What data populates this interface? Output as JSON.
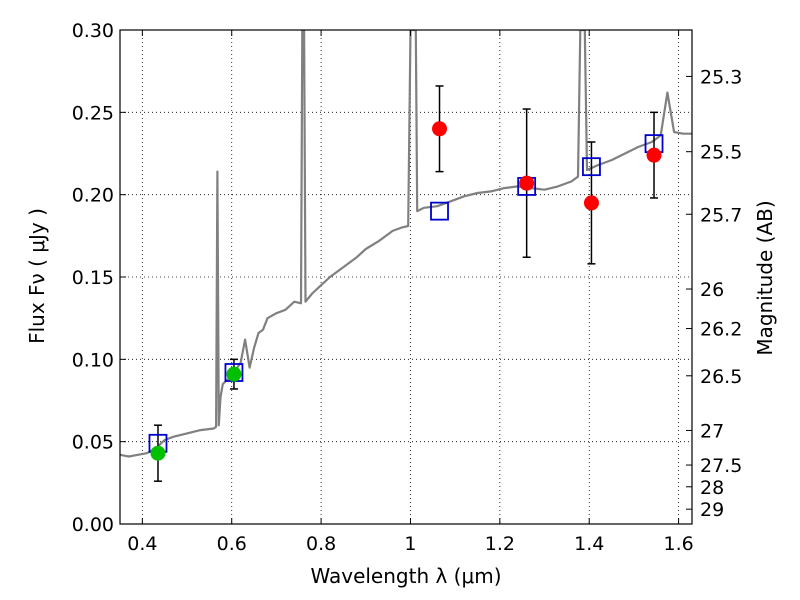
{
  "chart_data": {
    "type": "scatter",
    "xlabel": "Wavelength  λ (μm)",
    "ylabel": "Flux  Fν  ( μJy )",
    "y2label": "Magnitude (AB)",
    "xlim": [
      0.35,
      1.63
    ],
    "ylim": [
      0.0,
      0.3
    ],
    "grid": true,
    "x_ticks": [
      0.4,
      0.6,
      0.8,
      1.0,
      1.2,
      1.4,
      1.6
    ],
    "x_tick_labels": [
      "0.4",
      "0.6",
      "0.8",
      "1",
      "1.2",
      "1.4",
      "1.6"
    ],
    "y_ticks": [
      0.0,
      0.05,
      0.1,
      0.15,
      0.2,
      0.25,
      0.3
    ],
    "y_tick_labels": [
      "0.00",
      "0.05",
      "0.10",
      "0.15",
      "0.20",
      "0.25",
      "0.30"
    ],
    "y2_ticks": [
      {
        "label": "25.3",
        "flux": 0.2718
      },
      {
        "label": "25.5",
        "flux": 0.2261
      },
      {
        "label": "25.7",
        "flux": 0.1881
      },
      {
        "label": "26",
        "flux": 0.1427
      },
      {
        "label": "26.2",
        "flux": 0.1187
      },
      {
        "label": "26.5",
        "flux": 0.09
      },
      {
        "label": "27",
        "flux": 0.0568
      },
      {
        "label": "27.5",
        "flux": 0.0358
      },
      {
        "label": "28",
        "flux": 0.0226
      },
      {
        "label": "29",
        "flux": 0.009
      }
    ],
    "colors": {
      "model": "#808080",
      "observed_green": "#00c000",
      "observed_red": "#ff0000",
      "model_box": "#0000cc",
      "errorbar": "#000000"
    },
    "model_spectrum": [
      [
        0.35,
        0.042
      ],
      [
        0.37,
        0.041
      ],
      [
        0.39,
        0.042
      ],
      [
        0.41,
        0.043
      ],
      [
        0.43,
        0.046
      ],
      [
        0.45,
        0.051
      ],
      [
        0.47,
        0.053
      ],
      [
        0.5,
        0.055
      ],
      [
        0.53,
        0.057
      ],
      [
        0.56,
        0.058
      ],
      [
        0.565,
        0.059
      ],
      [
        0.568,
        0.214
      ],
      [
        0.571,
        0.06
      ],
      [
        0.575,
        0.077
      ],
      [
        0.58,
        0.085
      ],
      [
        0.6,
        0.09
      ],
      [
        0.62,
        0.098
      ],
      [
        0.63,
        0.112
      ],
      [
        0.64,
        0.095
      ],
      [
        0.65,
        0.107
      ],
      [
        0.66,
        0.116
      ],
      [
        0.67,
        0.118
      ],
      [
        0.68,
        0.125
      ],
      [
        0.7,
        0.128
      ],
      [
        0.72,
        0.13
      ],
      [
        0.74,
        0.135
      ],
      [
        0.755,
        0.134
      ],
      [
        0.758,
        0.3
      ],
      [
        0.762,
        0.3
      ],
      [
        0.765,
        0.135
      ],
      [
        0.78,
        0.14
      ],
      [
        0.8,
        0.145
      ],
      [
        0.82,
        0.15
      ],
      [
        0.85,
        0.156
      ],
      [
        0.88,
        0.162
      ],
      [
        0.9,
        0.167
      ],
      [
        0.93,
        0.172
      ],
      [
        0.96,
        0.178
      ],
      [
        0.98,
        0.18
      ],
      [
        0.995,
        0.181
      ],
      [
        1.0,
        0.3
      ],
      [
        1.012,
        0.3
      ],
      [
        1.015,
        0.19
      ],
      [
        1.03,
        0.192
      ],
      [
        1.06,
        0.193
      ],
      [
        1.09,
        0.196
      ],
      [
        1.12,
        0.199
      ],
      [
        1.15,
        0.201
      ],
      [
        1.18,
        0.202
      ],
      [
        1.21,
        0.204
      ],
      [
        1.24,
        0.205
      ],
      [
        1.27,
        0.204
      ],
      [
        1.3,
        0.203
      ],
      [
        1.33,
        0.205
      ],
      [
        1.36,
        0.208
      ],
      [
        1.375,
        0.211
      ],
      [
        1.38,
        0.3
      ],
      [
        1.39,
        0.3
      ],
      [
        1.395,
        0.215
      ],
      [
        1.42,
        0.218
      ],
      [
        1.45,
        0.221
      ],
      [
        1.48,
        0.225
      ],
      [
        1.51,
        0.229
      ],
      [
        1.54,
        0.232
      ],
      [
        1.56,
        0.236
      ],
      [
        1.575,
        0.262
      ],
      [
        1.59,
        0.238
      ],
      [
        1.61,
        0.237
      ],
      [
        1.63,
        0.237
      ]
    ],
    "model_photometry": [
      {
        "x": 0.435,
        "y": 0.049
      },
      {
        "x": 0.605,
        "y": 0.092
      },
      {
        "x": 1.065,
        "y": 0.19
      },
      {
        "x": 1.26,
        "y": 0.205
      },
      {
        "x": 1.405,
        "y": 0.217
      },
      {
        "x": 1.545,
        "y": 0.231
      }
    ],
    "observed": [
      {
        "x": 0.435,
        "y": 0.043,
        "err": 0.017,
        "color": "#00c000"
      },
      {
        "x": 0.605,
        "y": 0.091,
        "err": 0.009,
        "color": "#00c000"
      },
      {
        "x": 1.065,
        "y": 0.24,
        "err": 0.026,
        "color": "#ff0000"
      },
      {
        "x": 1.26,
        "y": 0.207,
        "err": 0.045,
        "color": "#ff0000"
      },
      {
        "x": 1.405,
        "y": 0.195,
        "err": 0.037,
        "color": "#ff0000"
      },
      {
        "x": 1.545,
        "y": 0.224,
        "err": 0.026,
        "color": "#ff0000"
      }
    ]
  }
}
